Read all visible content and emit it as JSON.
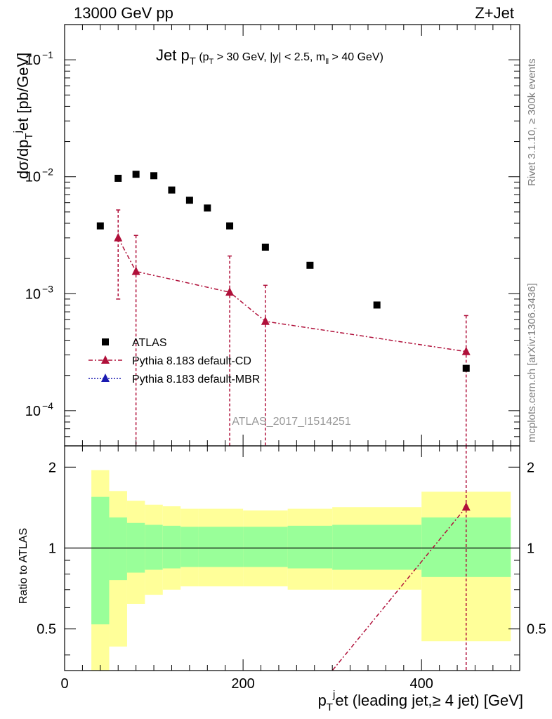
{
  "header": {
    "left": "13000 GeV pp",
    "right": "Z+Jet"
  },
  "side_labels": {
    "rivet": "Rivet 3.1.10, ≥ 300k events",
    "mcplots": "mcplots.cern.ch [arXiv:1306.3436]"
  },
  "watermark": "ATLAS_2017_I1514251",
  "chart_data": [
    {
      "type": "scatter",
      "panel": "main",
      "title": "Jet p_T (p_T > 30 GeV, |y| < 2.5, m_ll > 40 GeV)",
      "ylabel": "dσ/dp_T^jet [pb/GeV]",
      "yscale": "log",
      "xlim": [
        0,
        510
      ],
      "ylim": [
        5e-05,
        0.2
      ],
      "y_ticks": [
        "10^-4",
        "10^-3",
        "10^-2",
        "10^-1"
      ],
      "legend": {
        "position": "lower-left",
        "entries": [
          "ATLAS",
          "Pythia 8.183 default-CD",
          "Pythia 8.183 default-MBR"
        ]
      },
      "series": [
        {
          "name": "ATLAS",
          "color": "#000000",
          "marker": "square",
          "x": [
            40,
            60,
            80,
            100,
            120,
            140,
            160,
            185,
            225,
            275,
            350,
            450
          ],
          "y": [
            0.0038,
            0.0097,
            0.0105,
            0.0102,
            0.0077,
            0.0063,
            0.0054,
            0.0038,
            0.0025,
            0.00175,
            0.0008,
            0.00023
          ]
        },
        {
          "name": "Pythia 8.183 default-CD",
          "color": "#b0103a",
          "marker": "triangle",
          "line": "dash-dot",
          "x": [
            60,
            80,
            185,
            225,
            450
          ],
          "y": [
            0.003,
            0.00155,
            0.00103,
            0.00058,
            0.00032
          ],
          "y_err_low": [
            0.0021,
            0.00155,
            0.00103,
            0.00058,
            0.00032
          ],
          "y_err_high": [
            0.0022,
            0.0016,
            0.00107,
            0.0006,
            0.00033
          ]
        },
        {
          "name": "Pythia 8.183 default-MBR",
          "color": "#1a1ab0",
          "marker": "triangle",
          "line": "dotted",
          "x": [],
          "y": []
        }
      ]
    },
    {
      "type": "area",
      "panel": "ratio",
      "ylabel": "Ratio to ATLAS",
      "xlabel": "p_T^jet (leading jet,≥ 4 jet) [GeV]",
      "xlim": [
        0,
        510
      ],
      "ylim": [
        0.35,
        2.4
      ],
      "x_ticks": [
        0,
        200,
        400
      ],
      "y_ticks": [
        0.5,
        1,
        2
      ],
      "bins": [
        {
          "x0": 30,
          "x1": 50,
          "green": [
            0.52,
            1.55
          ],
          "yellow": [
            0.3,
            1.95
          ]
        },
        {
          "x0": 50,
          "x1": 70,
          "green": [
            0.76,
            1.3
          ],
          "yellow": [
            0.43,
            1.63
          ]
        },
        {
          "x0": 70,
          "x1": 90,
          "green": [
            0.81,
            1.24
          ],
          "yellow": [
            0.62,
            1.5
          ]
        },
        {
          "x0": 90,
          "x1": 110,
          "green": [
            0.83,
            1.22
          ],
          "yellow": [
            0.67,
            1.45
          ]
        },
        {
          "x0": 110,
          "x1": 130,
          "green": [
            0.84,
            1.21
          ],
          "yellow": [
            0.7,
            1.43
          ]
        },
        {
          "x0": 130,
          "x1": 150,
          "green": [
            0.85,
            1.2
          ],
          "yellow": [
            0.72,
            1.4
          ]
        },
        {
          "x0": 150,
          "x1": 170,
          "green": [
            0.85,
            1.2
          ],
          "yellow": [
            0.72,
            1.4
          ]
        },
        {
          "x0": 170,
          "x1": 200,
          "green": [
            0.85,
            1.2
          ],
          "yellow": [
            0.72,
            1.4
          ]
        },
        {
          "x0": 200,
          "x1": 250,
          "green": [
            0.85,
            1.2
          ],
          "yellow": [
            0.72,
            1.38
          ]
        },
        {
          "x0": 250,
          "x1": 300,
          "green": [
            0.84,
            1.21
          ],
          "yellow": [
            0.7,
            1.4
          ]
        },
        {
          "x0": 300,
          "x1": 400,
          "green": [
            0.83,
            1.22
          ],
          "yellow": [
            0.7,
            1.42
          ]
        },
        {
          "x0": 400,
          "x1": 500,
          "green": [
            0.78,
            1.3
          ],
          "yellow": [
            0.45,
            1.62
          ]
        }
      ],
      "series": [
        {
          "name": "Pythia 8.183 default-CD",
          "color": "#b0103a",
          "x": [
            450
          ],
          "y": [
            1.42
          ],
          "segment_to": {
            "x": 300,
            "y": 0.3
          }
        }
      ]
    }
  ]
}
